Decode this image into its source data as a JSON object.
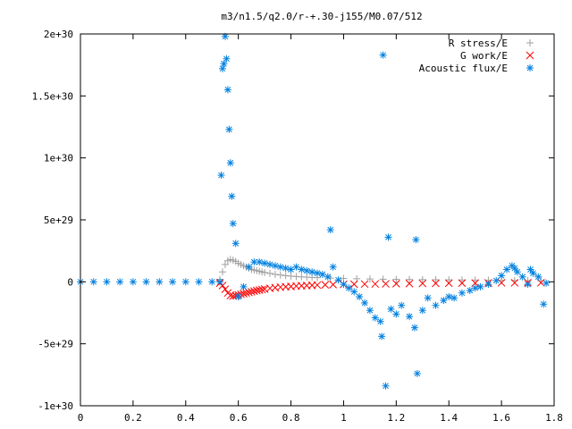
{
  "chart_data": {
    "type": "scatter",
    "title": "m3/n1.5/q2.0/r-+.30-j155/M0.07/512",
    "xlabel": "",
    "ylabel": "",
    "xlim": [
      0,
      1.8
    ],
    "ylim": [
      -1e+30,
      2e+30
    ],
    "x_ticks": [
      {
        "value": 0,
        "label": "0"
      },
      {
        "value": 0.2,
        "label": "0.2"
      },
      {
        "value": 0.4,
        "label": "0.4"
      },
      {
        "value": 0.6,
        "label": "0.6"
      },
      {
        "value": 0.8,
        "label": "0.8"
      },
      {
        "value": 1.0,
        "label": "1"
      },
      {
        "value": 1.2,
        "label": "1.2"
      },
      {
        "value": 1.4,
        "label": "1.4"
      },
      {
        "value": 1.6,
        "label": "1.6"
      },
      {
        "value": 1.8,
        "label": "1.8"
      }
    ],
    "y_ticks": [
      {
        "value": -1e+30,
        "label": "-1e+30"
      },
      {
        "value": -5e+29,
        "label": "-5e+29"
      },
      {
        "value": 0,
        "label": "0"
      },
      {
        "value": 5e+29,
        "label": "5e+29"
      },
      {
        "value": 1e+30,
        "label": "1e+30"
      },
      {
        "value": 1.5e+30,
        "label": "1.5e+30"
      },
      {
        "value": 2e+30,
        "label": "2e+30"
      }
    ],
    "grid": false,
    "legend_position": "top-right",
    "series": [
      {
        "name": "R stress/E",
        "marker": "plus",
        "color": "#a0a0a0",
        "x": [
          0.53,
          0.54,
          0.55,
          0.56,
          0.57,
          0.58,
          0.59,
          0.6,
          0.61,
          0.62,
          0.63,
          0.64,
          0.65,
          0.66,
          0.67,
          0.68,
          0.69,
          0.7,
          0.72,
          0.74,
          0.76,
          0.78,
          0.8,
          0.82,
          0.84,
          0.86,
          0.88,
          0.9,
          0.95,
          1.0,
          1.05,
          1.1,
          1.15,
          1.2,
          1.25,
          1.3,
          1.35,
          1.4,
          1.45,
          1.5,
          1.55,
          1.6,
          1.65,
          1.7,
          1.75
        ],
        "y": [
          2e+28,
          8e+28,
          1.4e+29,
          1.7e+29,
          1.8e+29,
          1.75e+29,
          1.65e+29,
          1.5e+29,
          1.4e+29,
          1.3e+29,
          1.2e+29,
          1.1e+29,
          1e+29,
          9.5e+28,
          9e+28,
          8.5e+28,
          8e+28,
          7.5e+28,
          6.8e+28,
          6e+28,
          5.5e+28,
          5e+28,
          4.6e+28,
          4.3e+28,
          4e+28,
          3.8e+28,
          3.6e+28,
          3.4e+28,
          3e+28,
          2.7e+28,
          2.5e+28,
          2.3e+28,
          2.1e+28,
          2e+28,
          1.9e+28,
          1.8e+28,
          1.7e+28,
          1.6e+28,
          1.5e+28,
          1.4e+28,
          1.3e+28,
          1.2e+28,
          1.1e+28,
          1e+28,
          9e+27
        ]
      },
      {
        "name": "G work/E",
        "marker": "cross",
        "color": "#ff0000",
        "x": [
          0.53,
          0.54,
          0.55,
          0.56,
          0.57,
          0.58,
          0.59,
          0.6,
          0.61,
          0.62,
          0.63,
          0.64,
          0.65,
          0.66,
          0.67,
          0.68,
          0.69,
          0.7,
          0.72,
          0.74,
          0.76,
          0.78,
          0.8,
          0.82,
          0.84,
          0.86,
          0.88,
          0.9,
          0.93,
          0.96,
          1.0,
          1.04,
          1.08,
          1.12,
          1.16,
          1.2,
          1.25,
          1.3,
          1.35,
          1.4,
          1.45,
          1.5,
          1.55,
          1.6,
          1.65,
          1.7,
          1.75
        ],
        "y": [
          -1e+28,
          -3e+28,
          -6e+28,
          -9e+28,
          -1.1e+29,
          -1.15e+29,
          -1.1e+29,
          -1.05e+29,
          -1e+29,
          -9.5e+28,
          -9e+28,
          -8.5e+28,
          -8e+28,
          -7.5e+28,
          -7e+28,
          -6.6e+28,
          -6.2e+28,
          -5.8e+28,
          -5.2e+28,
          -4.7e+28,
          -4.3e+28,
          -4e+28,
          -3.7e+28,
          -3.4e+28,
          -3.2e+28,
          -3e+28,
          -2.8e+28,
          -2.6e+28,
          -2.4e+28,
          -2.2e+28,
          -2e+28,
          -1.9e+28,
          -1.8e+28,
          -1.7e+28,
          -1.6e+28,
          -1.5e+28,
          -1.4e+28,
          -1.3e+28,
          -1.2e+28,
          -1.1e+28,
          -1e+28,
          -1e+28,
          -9e+27,
          -8e+27,
          -8e+27,
          -7e+27,
          -7e+27
        ]
      },
      {
        "name": "Acoustic flux/E",
        "marker": "star",
        "color": "#0080e0",
        "x": [
          0.0,
          0.05,
          0.1,
          0.15,
          0.2,
          0.25,
          0.3,
          0.35,
          0.4,
          0.45,
          0.5,
          0.53,
          0.535,
          0.54,
          0.545,
          0.55,
          0.555,
          0.56,
          0.565,
          0.57,
          0.575,
          0.58,
          0.59,
          0.6,
          0.62,
          0.64,
          0.66,
          0.68,
          0.7,
          0.72,
          0.74,
          0.76,
          0.78,
          0.8,
          0.82,
          0.84,
          0.86,
          0.88,
          0.9,
          0.92,
          0.94,
          0.95,
          0.96,
          0.98,
          1.0,
          1.02,
          1.04,
          1.06,
          1.08,
          1.1,
          1.12,
          1.14,
          1.145,
          1.15,
          1.16,
          1.17,
          1.18,
          1.2,
          1.22,
          1.25,
          1.27,
          1.275,
          1.28,
          1.3,
          1.32,
          1.35,
          1.38,
          1.4,
          1.42,
          1.45,
          1.48,
          1.5,
          1.52,
          1.55,
          1.58,
          1.6,
          1.62,
          1.64,
          1.65,
          1.66,
          1.68,
          1.7,
          1.71,
          1.72,
          1.74,
          1.76,
          1.77
        ],
        "y": [
          0,
          0,
          0,
          0,
          0,
          0,
          0,
          0,
          0,
          0,
          0,
          0,
          8.6e+29,
          1.72e+30,
          1.76e+30,
          1.98e+30,
          1.8e+30,
          1.55e+30,
          1.23e+30,
          9.6e+29,
          6.9e+29,
          4.7e+29,
          3.1e+29,
          -1.2e+29,
          -4e+28,
          1.2e+29,
          1.6e+29,
          1.6e+29,
          1.5e+29,
          1.4e+29,
          1.3e+29,
          1.2e+29,
          1.1e+29,
          1e+29,
          1.2e+29,
          1e+29,
          9e+28,
          8e+28,
          7e+28,
          6e+28,
          4e+28,
          4.2e+29,
          1.2e+29,
          1.5e+28,
          -2e+28,
          -5e+28,
          -8e+28,
          -1.2e+29,
          -1.7e+29,
          -2.3e+29,
          -2.9e+29,
          -3.2e+29,
          -4.4e+29,
          1.83e+30,
          -8.4e+29,
          3.6e+29,
          -2.2e+29,
          -2.6e+29,
          -1.9e+29,
          -2.8e+29,
          -3.7e+29,
          3.4e+29,
          -7.4e+29,
          -2.3e+29,
          -1.3e+29,
          -1.9e+29,
          -1.5e+29,
          -1.2e+29,
          -1.3e+29,
          -9e+28,
          -7e+28,
          -5e+28,
          -4e+28,
          -2e+28,
          1e+28,
          5e+28,
          1e+29,
          1.3e+29,
          1.1e+29,
          8e+28,
          4e+28,
          -2e+28,
          1e+29,
          7e+28,
          4e+28,
          -1.8e+29,
          -1e+28
        ]
      }
    ]
  }
}
